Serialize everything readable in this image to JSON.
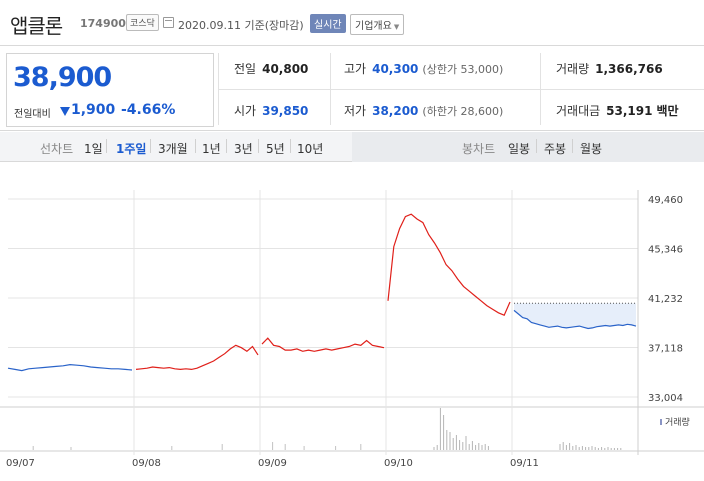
{
  "header": {
    "stock_name": "앱클론",
    "stock_code": "174900",
    "market_badge": "코스닥",
    "date_text": "2020.09.11 기준(장마감)",
    "realtime_button": "실시간",
    "company_info_button": "기업개요",
    "calendar_icon": "calendar-icon",
    "caret_icon": "caret-down-icon"
  },
  "price": {
    "current": "38,900",
    "change_label": "전일대비",
    "change_value": "1,900",
    "change_pct": "-4.66%",
    "direction_icon": "down-triangle-icon",
    "accent_color": "#1b5bd0"
  },
  "stats": {
    "prev_close_label": "전일",
    "prev_close": "40,800",
    "high_label": "고가",
    "high": "40,300",
    "upper_limit": "(상한가 53,000)",
    "volume_label": "거래량",
    "volume": "1,366,766",
    "open_label": "시가",
    "open": "39,850",
    "low_label": "저가",
    "low": "38,200",
    "lower_limit": "(하한가 28,600)",
    "amount_label": "거래대금",
    "amount": "53,191",
    "amount_unit": "백만"
  },
  "toolbar": {
    "line_chart_label": "선차트",
    "periods": [
      "1일",
      "1주일",
      "3개월",
      "1년",
      "3년",
      "5년",
      "10년"
    ],
    "selected_period": "1주일",
    "candle_chart_label": "봉차트",
    "candles": [
      "일봉",
      "주봉",
      "월봉"
    ]
  },
  "chart_data": {
    "type": "line",
    "y_ticks": [
      "49,460",
      "45,346",
      "41,232",
      "37,118",
      "33,004"
    ],
    "ylim": [
      33004,
      49460
    ],
    "x_ticks": [
      "09/07",
      "09/08",
      "09/09",
      "09/10",
      "09/11"
    ],
    "volume_legend": "거래량",
    "up_color": "#e0201a",
    "down_color": "#2a63c9",
    "fill_color": "#e6eefa",
    "reference_price": 40800,
    "series": [
      {
        "day": "09/07",
        "values": [
          35400,
          35300,
          35200,
          35350,
          35400,
          35450,
          35500,
          35550,
          35600,
          35700,
          35650,
          35600,
          35500,
          35450,
          35400,
          35350,
          35350,
          35300,
          35250
        ]
      },
      {
        "day": "09/08",
        "values": [
          35300,
          35350,
          35400,
          35500,
          35450,
          35400,
          35450,
          35350,
          35300,
          35350,
          35300,
          35400,
          35600,
          35800,
          36000,
          36300,
          36600,
          37000,
          37300,
          37100,
          36800,
          37200,
          36500
        ]
      },
      {
        "day": "09/09",
        "values": [
          37400,
          37900,
          37300,
          37200,
          36900,
          36900,
          37000,
          36800,
          36900,
          36800,
          36900,
          37000,
          36900,
          37000,
          37100,
          37200,
          37400,
          37300,
          37700,
          37300,
          37200,
          37100
        ]
      },
      {
        "day": "09/10",
        "values": [
          41000,
          45500,
          47000,
          48000,
          48200,
          47800,
          47500,
          46500,
          45800,
          45000,
          44000,
          43500,
          42800,
          42200,
          41800,
          41400,
          41000,
          40600,
          40300,
          40000,
          39800,
          40900
        ]
      },
      {
        "day": "09/11",
        "values": [
          40200,
          39900,
          39600,
          39500,
          39200,
          39100,
          39000,
          38900,
          38800,
          38850,
          38900,
          38800,
          38750,
          38800,
          38850,
          38900,
          38800,
          38700,
          38750,
          38850,
          38900,
          38950,
          38900,
          38950,
          39000,
          38950,
          39050,
          39000,
          38900
        ]
      }
    ],
    "volume": {
      "09/10": [
        3,
        5,
        42,
        35,
        20,
        18,
        12,
        15,
        10,
        8,
        14,
        6,
        9,
        5,
        7,
        5,
        6,
        4
      ],
      "09/11": [
        6,
        8,
        5,
        7,
        4,
        5,
        3,
        4,
        3,
        3,
        4,
        3,
        2,
        3,
        2,
        3,
        2,
        2,
        2,
        2
      ]
    }
  }
}
